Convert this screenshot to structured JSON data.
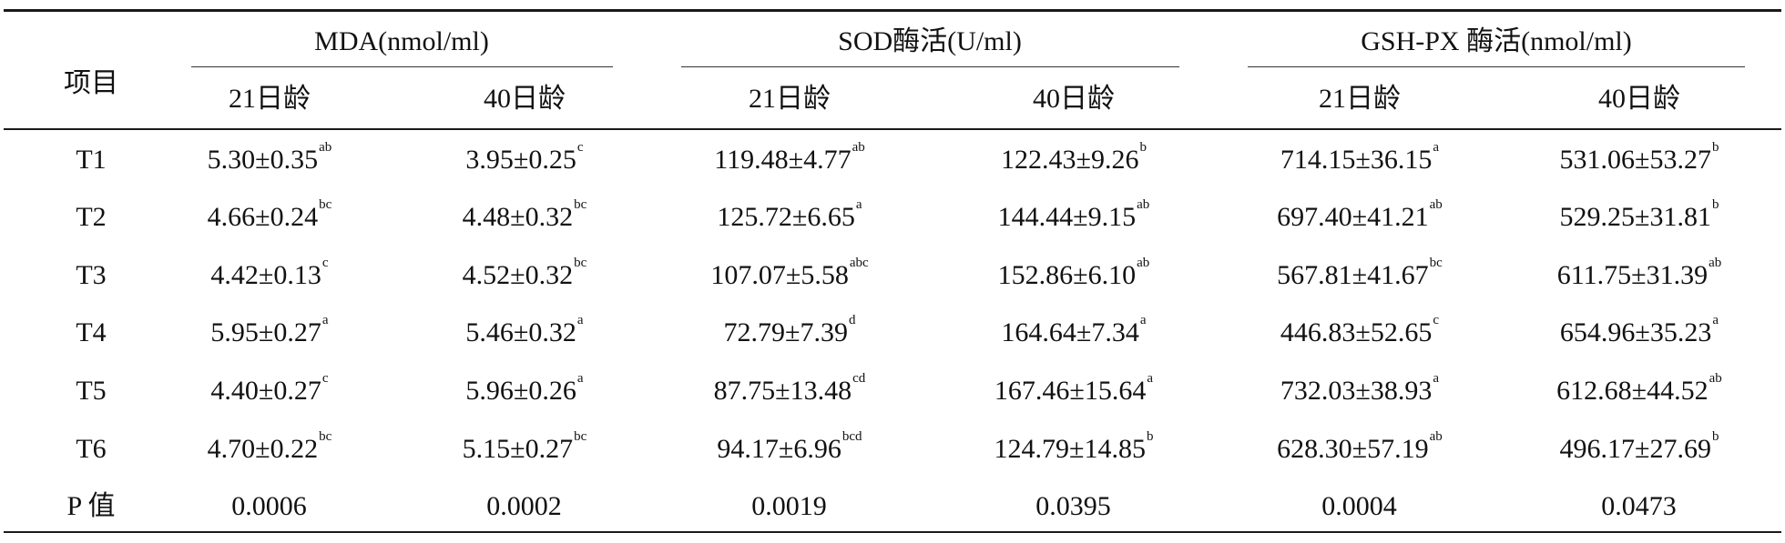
{
  "table": {
    "row_header": "项目",
    "groups": [
      {
        "label": "MDA(nmol/ml)",
        "subcolumns": [
          "21日龄",
          "40日龄"
        ]
      },
      {
        "label": "SOD酶活(U/ml)",
        "subcolumns": [
          "21日龄",
          "40日龄"
        ]
      },
      {
        "label": "GSH-PX 酶活(nmol/ml)",
        "subcolumns": [
          "21日龄",
          "40日龄"
        ]
      }
    ],
    "rows": [
      {
        "label": "T1",
        "cells": [
          {
            "v": "5.30±0.35",
            "s": "ab"
          },
          {
            "v": "3.95±0.25",
            "s": "c"
          },
          {
            "v": "119.48±4.77",
            "s": "ab"
          },
          {
            "v": "122.43±9.26",
            "s": "b"
          },
          {
            "v": "714.15±36.15",
            "s": "a"
          },
          {
            "v": "531.06±53.27",
            "s": "b"
          }
        ]
      },
      {
        "label": "T2",
        "cells": [
          {
            "v": "4.66±0.24",
            "s": "bc"
          },
          {
            "v": "4.48±0.32",
            "s": "bc"
          },
          {
            "v": "125.72±6.65",
            "s": "a"
          },
          {
            "v": "144.44±9.15",
            "s": "ab"
          },
          {
            "v": "697.40±41.21",
            "s": "ab"
          },
          {
            "v": "529.25±31.81",
            "s": "b"
          }
        ]
      },
      {
        "label": "T3",
        "cells": [
          {
            "v": "4.42±0.13",
            "s": "c"
          },
          {
            "v": "4.52±0.32",
            "s": "bc"
          },
          {
            "v": "107.07±5.58",
            "s": "abc"
          },
          {
            "v": "152.86±6.10",
            "s": "ab"
          },
          {
            "v": "567.81±41.67",
            "s": "bc"
          },
          {
            "v": "611.75±31.39",
            "s": "ab"
          }
        ]
      },
      {
        "label": "T4",
        "cells": [
          {
            "v": "5.95±0.27",
            "s": "a"
          },
          {
            "v": "5.46±0.32",
            "s": "a"
          },
          {
            "v": "72.79±7.39",
            "s": "d"
          },
          {
            "v": "164.64±7.34",
            "s": "a"
          },
          {
            "v": "446.83±52.65",
            "s": "c"
          },
          {
            "v": "654.96±35.23",
            "s": "a"
          }
        ]
      },
      {
        "label": "T5",
        "cells": [
          {
            "v": "4.40±0.27",
            "s": "c"
          },
          {
            "v": "5.96±0.26",
            "s": "a"
          },
          {
            "v": "87.75±13.48",
            "s": "cd"
          },
          {
            "v": "167.46±15.64",
            "s": "a"
          },
          {
            "v": "732.03±38.93",
            "s": "a"
          },
          {
            "v": "612.68±44.52",
            "s": "ab"
          }
        ]
      },
      {
        "label": "T6",
        "cells": [
          {
            "v": "4.70±0.22",
            "s": "bc"
          },
          {
            "v": "5.15±0.27",
            "s": "bc"
          },
          {
            "v": "94.17±6.96",
            "s": "bcd"
          },
          {
            "v": "124.79±14.85",
            "s": "b"
          },
          {
            "v": "628.30±57.19",
            "s": "ab"
          },
          {
            "v": "496.17±27.69",
            "s": "b"
          }
        ]
      },
      {
        "label": "P 值",
        "cells": [
          {
            "v": "0.0006",
            "s": ""
          },
          {
            "v": "0.0002",
            "s": ""
          },
          {
            "v": "0.0019",
            "s": ""
          },
          {
            "v": "0.0395",
            "s": ""
          },
          {
            "v": "0.0004",
            "s": ""
          },
          {
            "v": "0.0473",
            "s": ""
          }
        ]
      }
    ]
  }
}
